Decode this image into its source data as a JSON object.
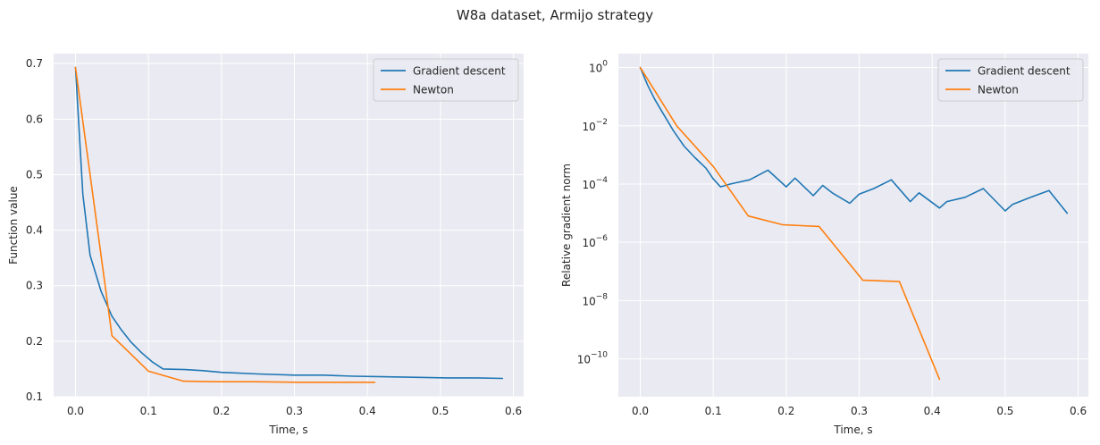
{
  "figure": {
    "suptitle": "W8a dataset, Armijo strategy"
  },
  "colors": {
    "gd": "#1f77b4",
    "newton": "#ff7f0e",
    "axes_bg": "#eaeaf2",
    "grid": "#ffffff"
  },
  "chart_data": [
    {
      "type": "line",
      "title": "",
      "xlabel": "Time, s",
      "ylabel": "Function value",
      "xlim": [
        -0.03,
        0.614
      ],
      "ylim": [
        0.1,
        0.718
      ],
      "xticks": [
        0.0,
        0.1,
        0.2,
        0.3,
        0.4,
        0.5,
        0.6
      ],
      "xtick_labels": [
        "0.0",
        "0.1",
        "0.2",
        "0.3",
        "0.4",
        "0.5",
        "0.6"
      ],
      "yticks": [
        0.1,
        0.2,
        0.3,
        0.4,
        0.5,
        0.6,
        0.7
      ],
      "ytick_labels": [
        "0.1",
        "0.2",
        "0.3",
        "0.4",
        "0.5",
        "0.6",
        "0.7"
      ],
      "grid": true,
      "legend": "top-right",
      "series": [
        {
          "name": "Gradient descent",
          "color": "#1f77b4",
          "x": [
            0.0,
            0.01,
            0.02,
            0.035,
            0.05,
            0.062,
            0.075,
            0.09,
            0.105,
            0.12,
            0.15,
            0.175,
            0.2,
            0.25,
            0.3,
            0.34,
            0.38,
            0.42,
            0.47,
            0.51,
            0.55,
            0.585
          ],
          "y": [
            0.693,
            0.465,
            0.355,
            0.29,
            0.245,
            0.222,
            0.2,
            0.18,
            0.163,
            0.15,
            0.149,
            0.147,
            0.144,
            0.141,
            0.139,
            0.139,
            0.137,
            0.136,
            0.135,
            0.134,
            0.134,
            0.133
          ]
        },
        {
          "name": "Newton",
          "color": "#ff7f0e",
          "x": [
            0.0,
            0.05,
            0.1,
            0.148,
            0.195,
            0.245,
            0.305,
            0.355,
            0.41
          ],
          "y": [
            0.693,
            0.21,
            0.146,
            0.128,
            0.127,
            0.127,
            0.126,
            0.126,
            0.126
          ]
        }
      ]
    },
    {
      "type": "line",
      "title": "",
      "xlabel": "Time, s",
      "ylabel": "Relative gradient norm",
      "yscale": "log",
      "xlim": [
        -0.03,
        0.614
      ],
      "ylim": [
        5e-12,
        3
      ],
      "xticks": [
        0.0,
        0.1,
        0.2,
        0.3,
        0.4,
        0.5,
        0.6
      ],
      "xtick_labels": [
        "0.0",
        "0.1",
        "0.2",
        "0.3",
        "0.4",
        "0.5",
        "0.6"
      ],
      "yticks": [
        1e-10,
        1e-08,
        1e-06,
        0.0001,
        0.01,
        1
      ],
      "ytick_labels": [
        {
          "base": "10",
          "exp": "−10"
        },
        {
          "base": "10",
          "exp": "−8"
        },
        {
          "base": "10",
          "exp": "−6"
        },
        {
          "base": "10",
          "exp": "−4"
        },
        {
          "base": "10",
          "exp": "−2"
        },
        {
          "base": "10",
          "exp": "0"
        }
      ],
      "grid": true,
      "legend": "top-right",
      "series": [
        {
          "name": "Gradient descent",
          "color": "#1f77b4",
          "x": [
            0.0,
            0.01,
            0.02,
            0.03,
            0.045,
            0.06,
            0.075,
            0.09,
            0.1,
            0.11,
            0.123,
            0.15,
            0.175,
            0.2,
            0.212,
            0.237,
            0.25,
            0.263,
            0.287,
            0.3,
            0.32,
            0.344,
            0.37,
            0.382,
            0.41,
            0.42,
            0.445,
            0.47,
            0.5,
            0.51,
            0.535,
            0.56,
            0.585
          ],
          "y": [
            1.0,
            0.25,
            0.08,
            0.03,
            0.007,
            0.002,
            0.0008,
            0.00035,
            0.00015,
            8e-05,
            0.0001,
            0.00014,
            0.0003,
            8e-05,
            0.00016,
            4e-05,
            9e-05,
            5e-05,
            2.2e-05,
            4.5e-05,
            7e-05,
            0.00014,
            2.5e-05,
            5e-05,
            1.5e-05,
            2.5e-05,
            3.5e-05,
            7e-05,
            1.2e-05,
            2e-05,
            3.5e-05,
            6e-05,
            1e-05
          ]
        },
        {
          "name": "Newton",
          "color": "#ff7f0e",
          "x": [
            0.0,
            0.05,
            0.1,
            0.148,
            0.195,
            0.245,
            0.305,
            0.355,
            0.41
          ],
          "y": [
            1.0,
            0.01,
            0.0004,
            8e-06,
            4e-06,
            3.5e-06,
            5e-08,
            4.5e-08,
            2e-11
          ]
        }
      ]
    }
  ]
}
